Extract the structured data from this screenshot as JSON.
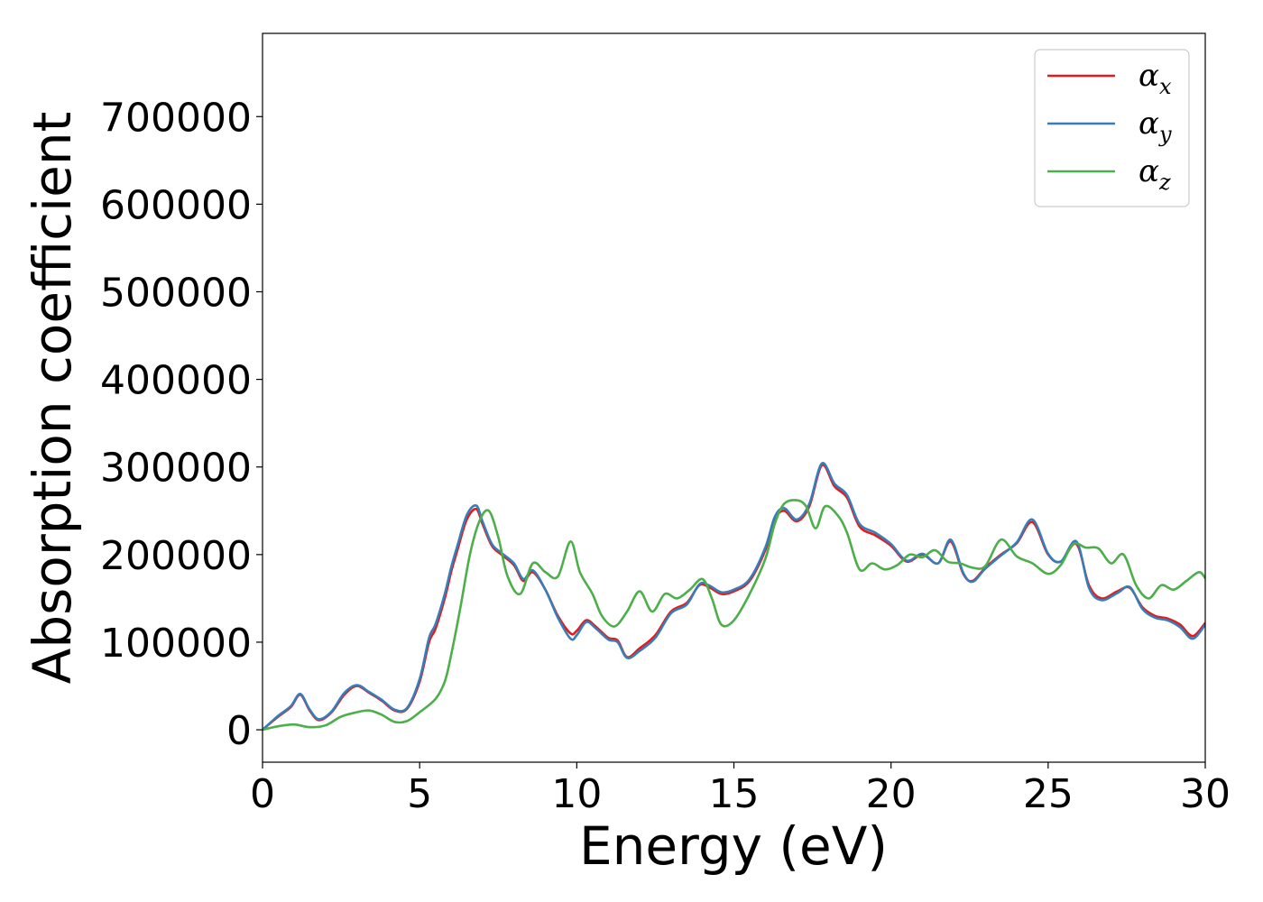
{
  "chart_data": {
    "type": "line",
    "xlabel": "Energy (eV)",
    "ylabel": "Absorption coefficient",
    "xlim": [
      0,
      30
    ],
    "ylim": [
      -37000,
      795000
    ],
    "xticks": [
      0,
      5,
      10,
      15,
      20,
      25,
      30
    ],
    "yticks": [
      0,
      100000,
      200000,
      300000,
      400000,
      500000,
      600000,
      700000
    ],
    "grid": false,
    "legend_position": "top-right",
    "series": [
      {
        "name": "α_x",
        "label_main": "α",
        "label_sub": "x",
        "color": "#e41a1c",
        "x": [
          0,
          0.5,
          0.9,
          1.2,
          1.5,
          1.8,
          2.2,
          2.6,
          3.0,
          3.4,
          3.8,
          4.2,
          4.6,
          5.0,
          5.3,
          5.5,
          5.8,
          6.0,
          6.2,
          6.5,
          6.8,
          7.0,
          7.3,
          7.6,
          8.0,
          8.3,
          8.6,
          9.0,
          9.4,
          9.8,
          10.0,
          10.3,
          10.6,
          11.0,
          11.3,
          11.6,
          12.0,
          12.5,
          13.0,
          13.5,
          13.9,
          14.2,
          14.6,
          15.0,
          15.5,
          16.0,
          16.3,
          16.6,
          17.0,
          17.4,
          17.8,
          18.2,
          18.6,
          19.0,
          19.5,
          20.0,
          20.5,
          21.0,
          21.5,
          21.9,
          22.3,
          22.6,
          23.0,
          23.5,
          24.0,
          24.5,
          25.0,
          25.4,
          25.9,
          26.3,
          26.7,
          27.2,
          27.6,
          28.0,
          28.4,
          28.8,
          29.2,
          29.6,
          30.0
        ],
        "values": [
          0,
          15000,
          26000,
          40000,
          22000,
          11000,
          20000,
          40000,
          50000,
          42000,
          33000,
          22000,
          24000,
          55000,
          100000,
          115000,
          150000,
          180000,
          205000,
          240000,
          252000,
          235000,
          210000,
          200000,
          188000,
          170000,
          180000,
          160000,
          130000,
          110000,
          113000,
          125000,
          118000,
          105000,
          102000,
          83000,
          93000,
          108000,
          135000,
          145000,
          165000,
          163000,
          155000,
          158000,
          170000,
          205000,
          240000,
          250000,
          238000,
          255000,
          302000,
          278000,
          265000,
          232000,
          222000,
          210000,
          192000,
          200000,
          190000,
          215000,
          178000,
          170000,
          185000,
          200000,
          213000,
          237000,
          200000,
          192000,
          212000,
          165000,
          150000,
          158000,
          162000,
          140000,
          130000,
          127000,
          120000,
          107000,
          122000
        ]
      },
      {
        "name": "α_y",
        "label_main": "α",
        "label_sub": "y",
        "color": "#377eb8",
        "x": [
          0,
          0.5,
          0.9,
          1.2,
          1.5,
          1.8,
          2.2,
          2.6,
          3.0,
          3.4,
          3.8,
          4.2,
          4.6,
          5.0,
          5.3,
          5.5,
          5.8,
          6.0,
          6.2,
          6.5,
          6.8,
          7.0,
          7.3,
          7.6,
          8.0,
          8.3,
          8.6,
          9.0,
          9.4,
          9.8,
          10.0,
          10.3,
          10.6,
          11.0,
          11.3,
          11.6,
          12.0,
          12.5,
          13.0,
          13.5,
          13.9,
          14.2,
          14.6,
          15.0,
          15.5,
          16.0,
          16.3,
          16.6,
          17.0,
          17.4,
          17.8,
          18.2,
          18.6,
          19.0,
          19.5,
          20.0,
          20.5,
          21.0,
          21.5,
          21.9,
          22.3,
          22.6,
          23.0,
          23.5,
          24.0,
          24.5,
          25.0,
          25.4,
          25.9,
          26.3,
          26.7,
          27.2,
          27.6,
          28.0,
          28.4,
          28.8,
          29.2,
          29.6,
          30.0
        ],
        "values": [
          0,
          16000,
          27000,
          41000,
          23000,
          12000,
          21000,
          42000,
          51000,
          43000,
          34000,
          23000,
          25000,
          58000,
          105000,
          120000,
          155000,
          185000,
          210000,
          245000,
          256000,
          238000,
          212000,
          202000,
          190000,
          172000,
          182000,
          160000,
          128000,
          104000,
          108000,
          123000,
          116000,
          103000,
          100000,
          82000,
          90000,
          105000,
          133000,
          143000,
          166000,
          165000,
          157000,
          160000,
          172000,
          208000,
          243000,
          253000,
          240000,
          258000,
          304000,
          281000,
          268000,
          235000,
          225000,
          212000,
          193000,
          201000,
          190000,
          217000,
          179000,
          169000,
          184000,
          199000,
          214000,
          240000,
          201000,
          192000,
          215000,
          162000,
          148000,
          156000,
          163000,
          138000,
          128000,
          125000,
          117000,
          104000,
          120000
        ]
      },
      {
        "name": "α_z",
        "label_main": "α",
        "label_sub": "z",
        "color": "#4daf4a",
        "x": [
          0,
          0.5,
          1.0,
          1.5,
          2.0,
          2.5,
          3.0,
          3.4,
          3.8,
          4.2,
          4.6,
          5.0,
          5.5,
          5.8,
          6.0,
          6.3,
          6.6,
          6.9,
          7.2,
          7.5,
          7.8,
          8.2,
          8.6,
          9.0,
          9.4,
          9.8,
          10.1,
          10.5,
          10.8,
          11.2,
          11.6,
          12.0,
          12.4,
          12.8,
          13.2,
          13.6,
          14.0,
          14.3,
          14.6,
          15.0,
          15.5,
          16.0,
          16.3,
          16.6,
          17.0,
          17.3,
          17.6,
          17.9,
          18.3,
          18.6,
          19.0,
          19.4,
          19.8,
          20.2,
          20.6,
          21.0,
          21.4,
          21.8,
          22.2,
          22.6,
          23.0,
          23.5,
          24.0,
          24.5,
          25.0,
          25.4,
          25.8,
          26.2,
          26.6,
          27.0,
          27.4,
          27.8,
          28.2,
          28.6,
          29.0,
          29.4,
          29.8,
          30.0
        ],
        "values": [
          0,
          4000,
          6000,
          3000,
          5000,
          15000,
          20000,
          22000,
          17000,
          9000,
          10000,
          20000,
          35000,
          55000,
          85000,
          140000,
          200000,
          238000,
          250000,
          220000,
          175000,
          155000,
          190000,
          180000,
          175000,
          215000,
          180000,
          155000,
          130000,
          118000,
          135000,
          158000,
          135000,
          155000,
          150000,
          160000,
          172000,
          150000,
          120000,
          125000,
          155000,
          195000,
          235000,
          258000,
          262000,
          255000,
          230000,
          255000,
          245000,
          225000,
          183000,
          190000,
          183000,
          188000,
          200000,
          197000,
          205000,
          192000,
          190000,
          185000,
          187000,
          217000,
          198000,
          190000,
          178000,
          188000,
          212000,
          208000,
          207000,
          190000,
          200000,
          165000,
          150000,
          165000,
          160000,
          170000,
          180000,
          173000
        ]
      }
    ]
  }
}
